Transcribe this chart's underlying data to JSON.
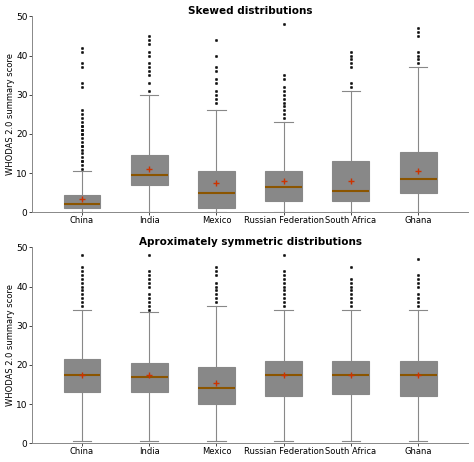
{
  "top_title": "Skewed distributions",
  "bottom_title": "Aproximately symmetric distributions",
  "ylabel": "WHODAS 2.0 summary score",
  "categories": [
    "China",
    "India",
    "Mexico",
    "Russian Federation",
    "South Africa",
    "Ghana"
  ],
  "box_color": "#F5A800",
  "median_color": "#8B5500",
  "mean_color": "#CC3300",
  "whisker_color": "#888888",
  "flier_color": "#111111",
  "ylim": [
    0,
    50
  ],
  "yticks": [
    0,
    10,
    20,
    30,
    40,
    50
  ],
  "top_boxes": [
    {
      "q1": 1.0,
      "median": 2.0,
      "q3": 4.5,
      "whislo": 0.0,
      "whishi": 10.5,
      "mean": 3.5,
      "fliers": [
        11,
        12,
        13,
        13,
        14,
        15,
        16,
        17,
        17,
        18,
        19,
        20,
        20,
        21,
        21,
        22,
        22,
        23,
        24,
        25,
        26,
        32,
        33,
        37,
        38,
        41,
        42
      ]
    },
    {
      "q1": 7.0,
      "median": 9.5,
      "q3": 14.5,
      "whislo": 0.0,
      "whishi": 30.0,
      "mean": 11.0,
      "fliers": [
        31,
        33,
        35,
        36,
        37,
        38,
        40,
        41,
        43,
        44,
        45
      ]
    },
    {
      "q1": 1.0,
      "median": 5.0,
      "q3": 10.5,
      "whislo": 0.0,
      "whishi": 26.0,
      "mean": 7.5,
      "fliers": [
        28,
        29,
        30,
        31,
        33,
        34,
        36,
        37,
        40,
        44
      ]
    },
    {
      "q1": 3.0,
      "median": 6.5,
      "q3": 10.5,
      "whislo": 0.0,
      "whishi": 23.0,
      "mean": 8.0,
      "fliers": [
        24,
        25,
        26,
        27,
        28,
        29,
        30,
        31,
        32,
        34,
        35,
        48
      ]
    },
    {
      "q1": 3.0,
      "median": 5.5,
      "q3": 13.0,
      "whislo": 0.0,
      "whishi": 31.0,
      "mean": 8.0,
      "fliers": [
        32,
        33,
        37,
        38,
        39,
        40,
        41
      ]
    },
    {
      "q1": 5.0,
      "median": 8.5,
      "q3": 15.5,
      "whislo": 0.0,
      "whishi": 37.0,
      "mean": 10.5,
      "fliers": [
        38,
        39,
        40,
        41,
        45,
        46,
        47
      ]
    }
  ],
  "bottom_boxes": [
    {
      "q1": 13.0,
      "median": 17.5,
      "q3": 21.5,
      "whislo": 0.5,
      "whishi": 34.0,
      "mean": 17.5,
      "fliers": [
        35,
        36,
        37,
        38,
        39,
        40,
        41,
        42,
        43,
        44,
        45,
        48
      ]
    },
    {
      "q1": 13.0,
      "median": 17.0,
      "q3": 20.5,
      "whislo": 0.5,
      "whishi": 33.5,
      "mean": 17.5,
      "fliers": [
        34,
        35,
        36,
        37,
        38,
        40,
        41,
        42,
        43,
        44,
        48
      ]
    },
    {
      "q1": 10.0,
      "median": 14.0,
      "q3": 19.5,
      "whislo": 0.5,
      "whishi": 35.0,
      "mean": 15.5,
      "fliers": [
        36,
        37,
        38,
        39,
        40,
        41,
        43,
        44,
        45
      ]
    },
    {
      "q1": 12.0,
      "median": 17.5,
      "q3": 21.0,
      "whislo": 0.5,
      "whishi": 34.0,
      "mean": 17.5,
      "fliers": [
        35,
        36,
        37,
        38,
        39,
        40,
        41,
        42,
        43,
        44,
        48
      ]
    },
    {
      "q1": 12.5,
      "median": 17.5,
      "q3": 21.0,
      "whislo": 0.5,
      "whishi": 34.0,
      "mean": 17.5,
      "fliers": [
        35,
        36,
        37,
        38,
        39,
        40,
        41,
        42,
        45
      ]
    },
    {
      "q1": 12.0,
      "median": 17.5,
      "q3": 21.0,
      "whislo": 0.5,
      "whishi": 34.0,
      "mean": 17.5,
      "fliers": [
        35,
        36,
        37,
        38,
        40,
        41,
        42,
        43,
        47
      ]
    }
  ]
}
